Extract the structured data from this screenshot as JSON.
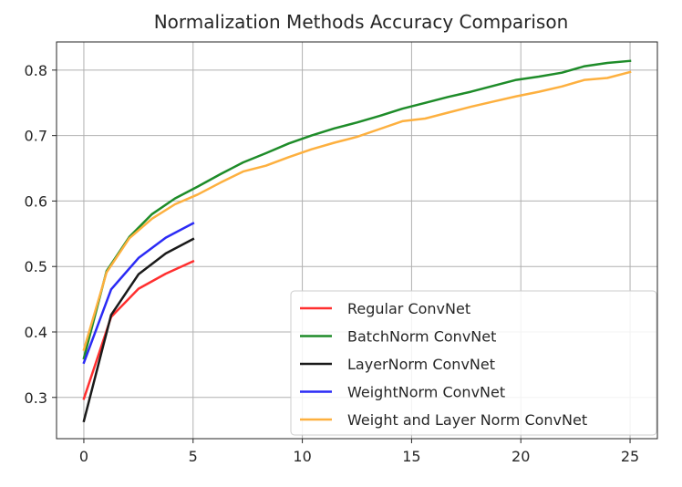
{
  "chart_data": {
    "type": "line",
    "title": "Normalization Methods Accuracy Comparison",
    "xlabel": "",
    "ylabel": "",
    "xlim": [
      -1.25,
      26.25
    ],
    "ylim": [
      0.237,
      0.843
    ],
    "xticks": [
      0,
      5,
      10,
      15,
      20,
      25
    ],
    "xtick_labels": [
      "0",
      "5",
      "10",
      "15",
      "20",
      "25"
    ],
    "yticks": [
      0.3,
      0.4,
      0.5,
      0.6,
      0.7,
      0.8
    ],
    "ytick_labels": [
      "0.3",
      "0.4",
      "0.5",
      "0.6",
      "0.7",
      "0.8"
    ],
    "grid": true,
    "legend_position": "lower-right",
    "series": [
      {
        "name": "Regular ConvNet",
        "color": "#ff2f2f",
        "x": [
          0,
          1.25,
          2.5,
          3.75,
          5
        ],
        "y": [
          0.298,
          0.423,
          0.466,
          0.489,
          0.508
        ]
      },
      {
        "name": "BatchNorm ConvNet",
        "color": "#1e8c29",
        "x": [
          0,
          1.04,
          2.08,
          3.12,
          4.17,
          5.21,
          6.25,
          7.29,
          8.33,
          9.38,
          10.42,
          11.46,
          12.5,
          13.54,
          14.58,
          15.62,
          16.67,
          17.71,
          18.75,
          19.79,
          20.83,
          21.88,
          22.92,
          23.96,
          25
        ],
        "y": [
          0.36,
          0.493,
          0.545,
          0.58,
          0.604,
          0.622,
          0.641,
          0.659,
          0.673,
          0.688,
          0.7,
          0.711,
          0.72,
          0.73,
          0.741,
          0.75,
          0.759,
          0.767,
          0.776,
          0.785,
          0.79,
          0.796,
          0.806,
          0.811,
          0.814
        ]
      },
      {
        "name": "LayerNorm ConvNet",
        "color": "#1a1a1a",
        "x": [
          0,
          1.25,
          2.5,
          3.75,
          5
        ],
        "y": [
          0.264,
          0.426,
          0.488,
          0.52,
          0.542
        ]
      },
      {
        "name": "WeightNorm ConvNet",
        "color": "#2b2bf5",
        "x": [
          0,
          1.25,
          2.5,
          3.75,
          5
        ],
        "y": [
          0.353,
          0.465,
          0.513,
          0.544,
          0.566
        ]
      },
      {
        "name": "Weight and Layer Norm ConvNet",
        "color": "#fdb03f",
        "x": [
          0,
          1.04,
          2.08,
          3.12,
          4.17,
          5.21,
          6.25,
          7.29,
          8.33,
          9.38,
          10.42,
          11.46,
          12.5,
          13.54,
          14.58,
          15.62,
          16.67,
          17.71,
          18.75,
          19.79,
          20.83,
          21.88,
          22.92,
          23.96,
          25
        ],
        "y": [
          0.373,
          0.491,
          0.543,
          0.573,
          0.595,
          0.61,
          0.628,
          0.645,
          0.654,
          0.667,
          0.679,
          0.689,
          0.698,
          0.71,
          0.722,
          0.726,
          0.735,
          0.744,
          0.752,
          0.76,
          0.767,
          0.775,
          0.785,
          0.788,
          0.797
        ]
      }
    ]
  }
}
